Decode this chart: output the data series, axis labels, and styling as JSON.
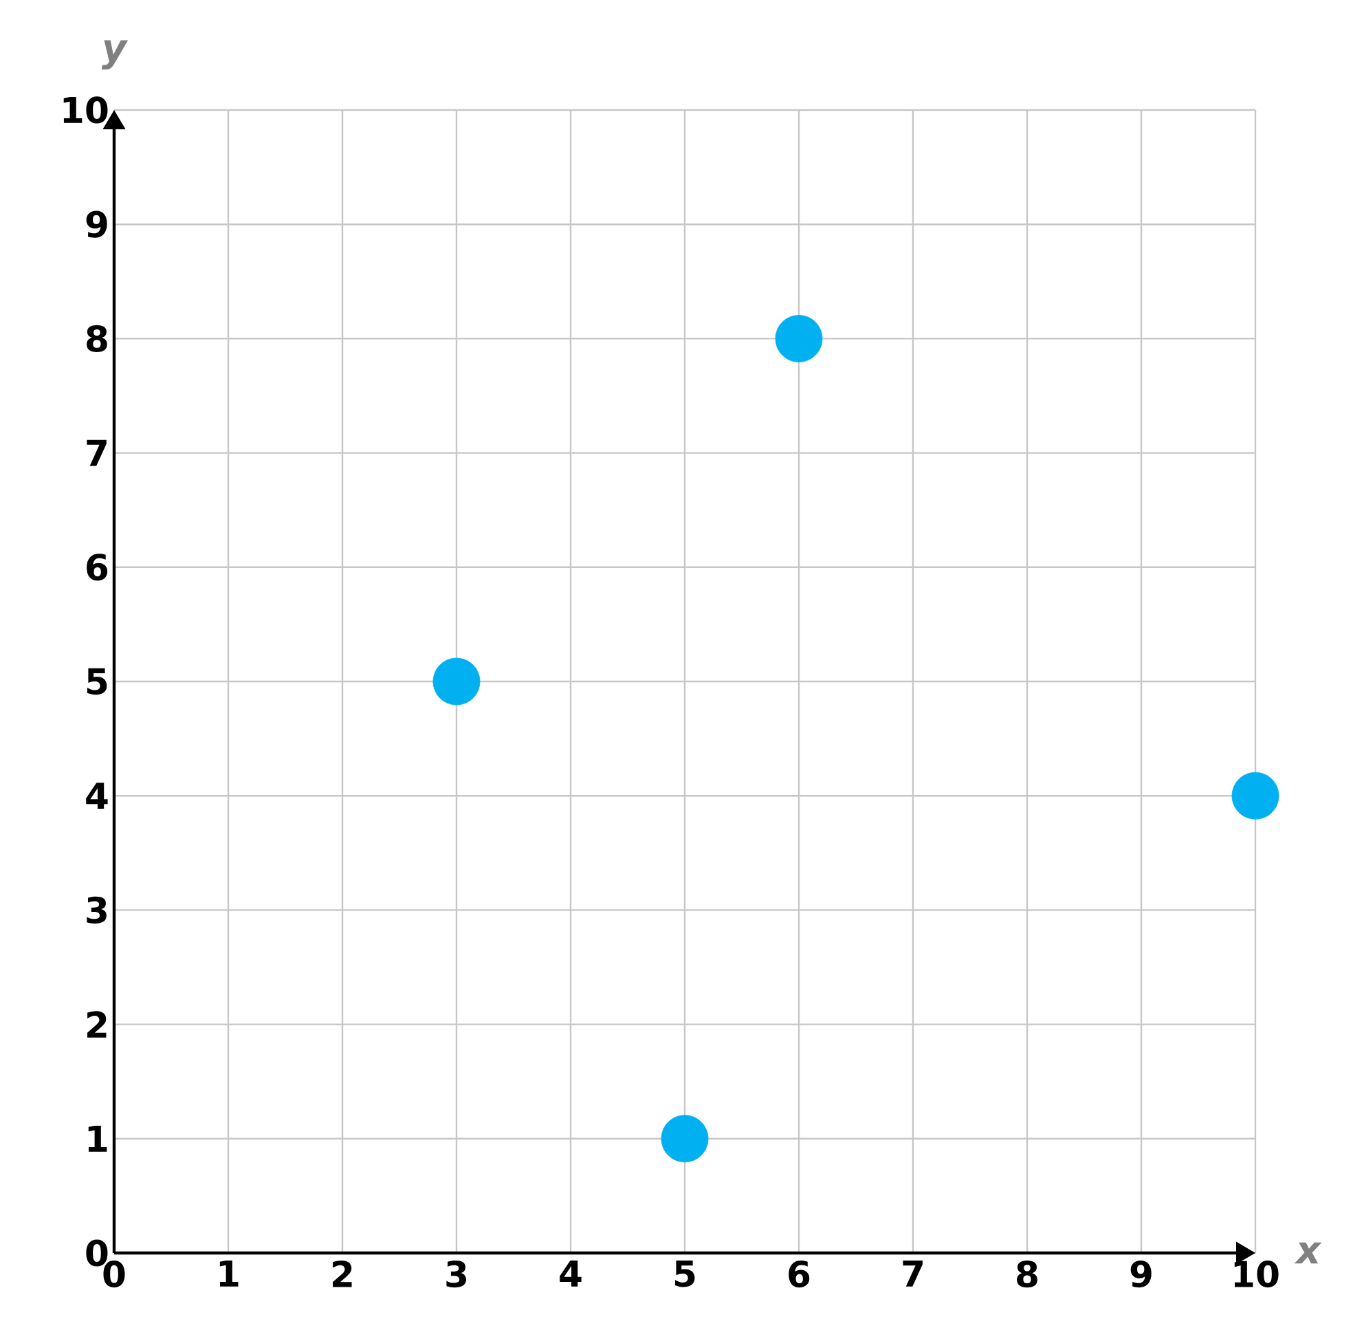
{
  "chart_data": {
    "type": "scatter",
    "xlabel": "x",
    "ylabel": "y",
    "x": [
      3,
      6,
      5,
      10
    ],
    "values": [
      5,
      8,
      1,
      4
    ],
    "color": "#00b0f0",
    "xlim": [
      0,
      10
    ],
    "ylim": [
      0,
      10
    ],
    "xticks": [
      0,
      1,
      2,
      3,
      4,
      5,
      6,
      7,
      8,
      9,
      10
    ],
    "yticks": [
      0,
      1,
      2,
      3,
      4,
      5,
      6,
      7,
      8,
      9,
      10
    ],
    "grid": true
  }
}
